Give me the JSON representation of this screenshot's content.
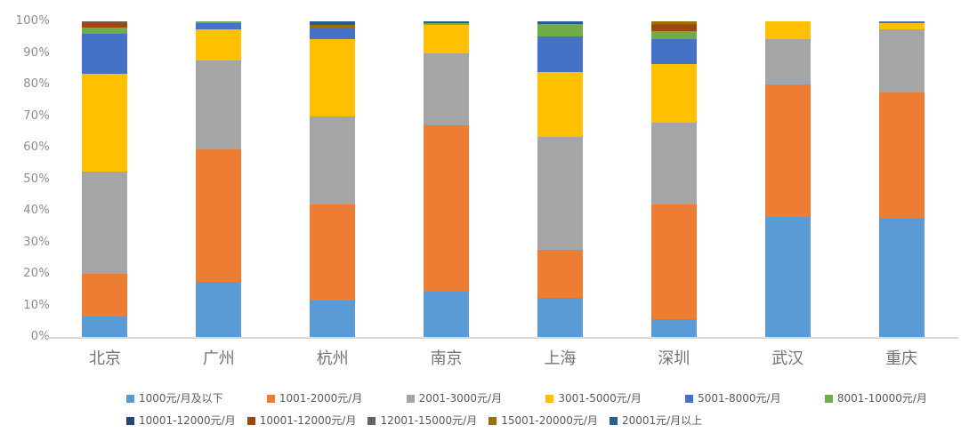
{
  "chart_data": {
    "type": "bar",
    "subtype": "stacked-100-percent",
    "title": "",
    "xlabel": "",
    "ylabel": "",
    "ylim": [
      0,
      100
    ],
    "grid": false,
    "legend_position": "bottom",
    "y_ticks": [
      "0%",
      "10%",
      "20%",
      "30%",
      "40%",
      "50%",
      "60%",
      "70%",
      "80%",
      "90%",
      "100%"
    ],
    "categories": [
      "北京",
      "广州",
      "杭州",
      "南京",
      "上海",
      "深圳",
      "武汉",
      "重庆"
    ],
    "series": [
      {
        "name": "1000元/月及以下",
        "color": "#5B9BD5",
        "values": [
          6.5,
          17.5,
          11.5,
          14.5,
          12.5,
          5.5,
          38,
          37.5
        ]
      },
      {
        "name": "1001-2000元/月",
        "color": "#ED7D31",
        "values": [
          13.5,
          42,
          30.5,
          52.5,
          15,
          36.5,
          42,
          40
        ]
      },
      {
        "name": "2001-3000元/月",
        "color": "#A5A5A5",
        "values": [
          32.5,
          28,
          28,
          23,
          36,
          26,
          14.5,
          20
        ]
      },
      {
        "name": "3001-5000元/月",
        "color": "#FFC000",
        "values": [
          31,
          10,
          24.5,
          9,
          20.5,
          18.5,
          5.5,
          2
        ]
      },
      {
        "name": "5001-8000元/月",
        "color": "#4472C4",
        "values": [
          12.5,
          2,
          3.5,
          0,
          11.2,
          8,
          0,
          0.5
        ]
      },
      {
        "name": "8001-10000元/月",
        "color": "#70AD47",
        "values": [
          2,
          0.5,
          0,
          0.5,
          4,
          2.5,
          0,
          0
        ]
      },
      {
        "name": "10001-12000元/月",
        "color": "#264478",
        "values": [
          0,
          0,
          0,
          0,
          0,
          0,
          0,
          0
        ]
      },
      {
        "name": "10001-12000元/月",
        "color": "#9E480E",
        "values": [
          1.5,
          0,
          0,
          0,
          0,
          2,
          0,
          0
        ]
      },
      {
        "name": "12001-15000元/月",
        "color": "#636363",
        "values": [
          0.5,
          0,
          0,
          0,
          0,
          0.3,
          0,
          0
        ]
      },
      {
        "name": "15001-20000元/月",
        "color": "#997300",
        "values": [
          0,
          0,
          1,
          0,
          0,
          0.7,
          0,
          0
        ]
      },
      {
        "name": "20001元/月以上",
        "color": "#255E91",
        "values": [
          0,
          0,
          1,
          0.5,
          0.8,
          0,
          0,
          0
        ]
      }
    ]
  }
}
